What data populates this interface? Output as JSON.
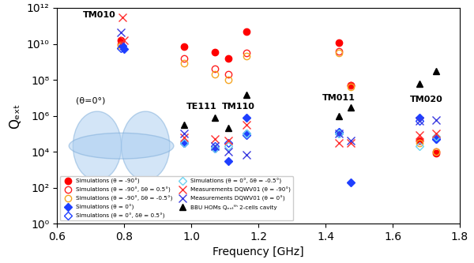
{
  "chart_data": {
    "type": "scatter",
    "x_label": "Frequency [GHz]",
    "y_label": "Qₑₓₜ",
    "log": "y",
    "legend": "lower left",
    "xlim": [
      0.6,
      1.8
    ],
    "xticks": [
      0.6,
      0.8,
      {
        "value": 1.0,
        "label": "1.0"
      },
      1.2,
      1.4,
      1.6,
      1.8
    ],
    "ylim": [
      1,
      1000000000000
    ],
    "yticks": [
      {
        "value": 1,
        "label": "10⁰"
      },
      {
        "value": 100,
        "label": "10²"
      },
      {
        "value": 10000,
        "label": "10⁴"
      },
      {
        "value": 1000000,
        "label": "10⁶"
      },
      {
        "value": 100000000,
        "label": "10⁸"
      },
      {
        "value": 10000000000,
        "label": "10¹⁰"
      },
      {
        "value": 1000000000000,
        "label": "10¹²"
      }
    ],
    "annotations": [
      "TM010",
      "TE111",
      "TM110",
      "TM011",
      "TM020",
      "(θ=0°)"
    ],
    "series": [
      {
        "name": "Simulations (θ = -90°)",
        "color": "#ff0000",
        "marker": "circle",
        "x": [
          0.79,
          0.98,
          1.07,
          1.11,
          1.165,
          1.44,
          1.475,
          1.68,
          1.73
        ],
        "values": [
          15000000000,
          7000000000,
          3500000000,
          1500000000,
          50000000000,
          12000000000,
          50000000,
          40000,
          8000
        ]
      },
      {
        "name": "Simulations (θ = -90°, δθ = 0.5°)",
        "color": "#ff2020",
        "marker": "open_circle",
        "x": [
          0.79,
          0.98,
          1.07,
          1.11,
          1.165,
          1.44,
          1.475,
          1.68,
          1.73
        ],
        "values": [
          10000000000,
          1500000000,
          400000000,
          200000000,
          3000000000,
          4000000000,
          50000000,
          40000,
          10000
        ]
      },
      {
        "name": "Simulations (θ = -90°, δθ = -0.5°)",
        "color": "#f5a623",
        "marker": "open_circle",
        "x": [
          0.79,
          0.98,
          1.07,
          1.11,
          1.165,
          1.44,
          1.475,
          1.68,
          1.73
        ],
        "values": [
          8000000000,
          800000000,
          200000000,
          100000000,
          2000000000,
          3000000000,
          40000000,
          30000,
          10000
        ]
      },
      {
        "name": "Simulations (θ = 0°)",
        "color": "#1f3fff",
        "marker": "diamond",
        "x": [
          0.795,
          0.8,
          0.98,
          1.07,
          1.11,
          1.165,
          1.165,
          1.44,
          1.475,
          1.68,
          1.73
        ],
        "values": [
          8000000000,
          5000000000,
          30000,
          15000,
          3000,
          100000,
          800000,
          120000,
          200,
          800000,
          50000
        ]
      },
      {
        "name": "Simulations (θ = 0°, δθ = 0.5°)",
        "color": "#1f3fff",
        "marker": "open_diamond",
        "x": [
          0.79,
          0.98,
          1.07,
          1.11,
          1.165,
          1.44,
          1.68,
          1.73
        ],
        "values": [
          6000000000,
          30000,
          20000,
          30000,
          80000,
          100000,
          500000,
          50000
        ]
      },
      {
        "name": "Simulations (θ = 0°, δθ = -0.5°)",
        "color": "#6fd3ef",
        "marker": "open_diamond",
        "x": [
          0.98,
          1.07,
          1.11,
          1.165,
          1.44,
          1.68,
          1.73
        ],
        "values": [
          30000,
          15000,
          20000,
          100000,
          100000,
          20000,
          70000
        ]
      },
      {
        "name": "Measurements DQWV01 (θ = -90°)",
        "color": "#ff3030",
        "marker": "x",
        "x": [
          0.795,
          0.8,
          0.98,
          1.07,
          1.11,
          1.165,
          1.44,
          1.475,
          1.68,
          1.73
        ],
        "values": [
          300000000000,
          15000000000,
          60000,
          50000,
          40000,
          300000,
          30000,
          30000,
          80000,
          100000
        ]
      },
      {
        "name": "Measurements DQWV01 (θ = 0°)",
        "color": "#3a3adf",
        "marker": "x",
        "x": [
          0.79,
          0.98,
          1.07,
          1.11,
          1.165,
          1.44,
          1.475,
          1.68,
          1.73
        ],
        "values": [
          45000000000,
          100000,
          20000,
          10000,
          7000,
          100000,
          40000,
          500000,
          600000
        ]
      },
      {
        "name": "BBU HOMs Qₑₓₜᵗʰ 2-cells cavity",
        "color": "#000000",
        "marker": "triangle",
        "x": [
          0.98,
          1.07,
          1.11,
          1.165,
          1.44,
          1.475,
          1.68,
          1.73
        ],
        "values": [
          300000,
          800000,
          200000,
          15000000,
          1000000,
          3000000,
          60000000,
          300000000
        ]
      }
    ]
  }
}
